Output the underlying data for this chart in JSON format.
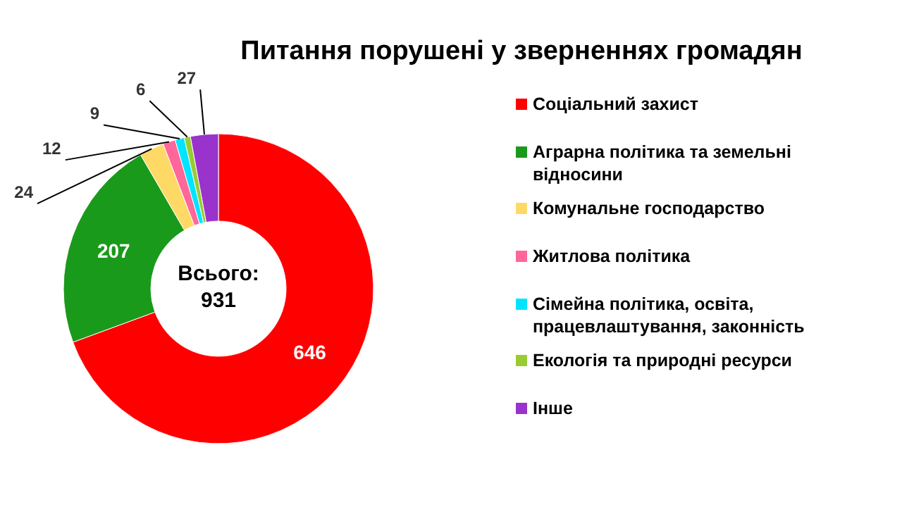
{
  "chart_data": {
    "type": "donut",
    "title": "Питання порушені у зверненнях громадян",
    "categories": [
      "Соціальний захист",
      "Аграрна політика та земельні відносини",
      "Комунальне господарство",
      "Житлова політика",
      "Сімейна політика, освіта, працевлаштування, законність",
      "Екологія та природні ресурси",
      "Інше"
    ],
    "values": [
      646,
      207,
      24,
      12,
      9,
      6,
      27
    ],
    "colors": [
      "#ff0000",
      "#1a9a1a",
      "#ffd966",
      "#ff6699",
      "#00e5ff",
      "#99cc33",
      "#9933cc"
    ],
    "data_labels": true,
    "legend": "right",
    "annotations": [
      "Всього: 931"
    ]
  }
}
